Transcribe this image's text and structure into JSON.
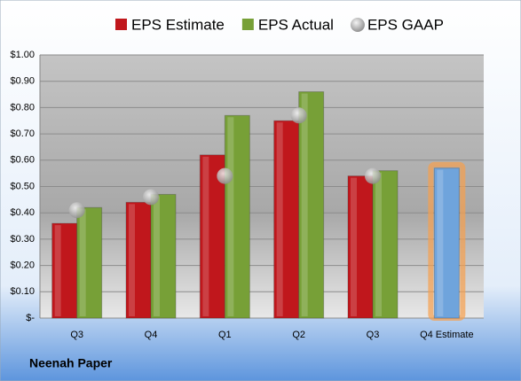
{
  "chart_data": {
    "type": "bar",
    "categories": [
      "Q3",
      "Q4",
      "Q1",
      "Q2",
      "Q3",
      "Q4 Estimate"
    ],
    "series": [
      {
        "name": "EPS Estimate",
        "color": "#c0171c",
        "point_colors": [
          null,
          null,
          null,
          null,
          null,
          "#6fa4dc"
        ],
        "values": [
          0.36,
          0.44,
          0.62,
          0.75,
          0.54,
          0.57
        ]
      },
      {
        "name": "EPS Actual",
        "color": "#77a037",
        "values": [
          0.42,
          0.47,
          0.77,
          0.86,
          0.56,
          null
        ]
      },
      {
        "name": "EPS GAAP",
        "color": "#a6a6a6",
        "type": "scatter",
        "values": [
          0.41,
          0.46,
          0.54,
          0.77,
          0.54,
          null
        ]
      }
    ],
    "ylim": [
      0,
      1
    ],
    "yticks": [
      {
        "value": 0,
        "label": "$-"
      },
      {
        "value": 0.1,
        "label": "$0.10"
      },
      {
        "value": 0.2,
        "label": "$0.20"
      },
      {
        "value": 0.3,
        "label": "$0.30"
      },
      {
        "value": 0.4,
        "label": "$0.40"
      },
      {
        "value": 0.5,
        "label": "$0.50"
      },
      {
        "value": 0.6,
        "label": "$0.60"
      },
      {
        "value": 0.7,
        "label": "$0.70"
      },
      {
        "value": 0.8,
        "label": "$0.80"
      },
      {
        "value": 0.9,
        "label": "$0.90"
      },
      {
        "value": 1,
        "label": "$1.00"
      }
    ],
    "grid": true,
    "company": "Neenah Paper"
  }
}
